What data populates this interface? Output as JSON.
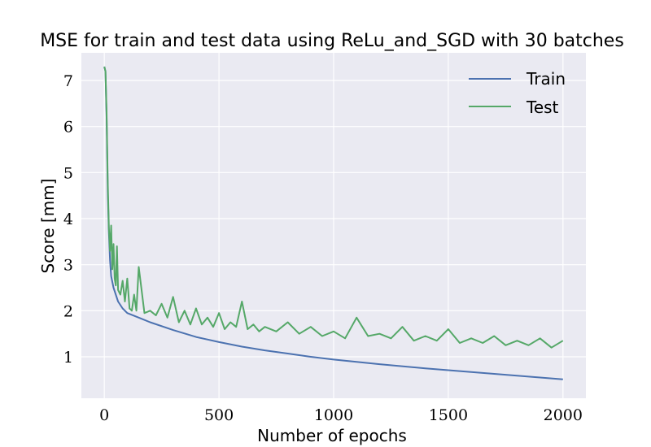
{
  "chart_data": {
    "type": "line",
    "title": "MSE for train and test data using ReLu_and_SGD with 30 batches",
    "xlabel": "Number of epochs",
    "ylabel": "Score [mm]",
    "xlim": [
      -100,
      2100
    ],
    "ylim": [
      0.1,
      7.6
    ],
    "xticks": [
      0,
      500,
      1000,
      1500,
      2000
    ],
    "yticks": [
      1,
      2,
      3,
      4,
      5,
      6,
      7
    ],
    "grid": true,
    "legend_position": "top-right",
    "colors": {
      "background": "#eaeaf2",
      "grid": "#ffffff",
      "train": "#4c72b0",
      "test": "#55a868"
    },
    "series": [
      {
        "name": "Train",
        "x": [
          0,
          5,
          10,
          15,
          20,
          25,
          30,
          40,
          50,
          60,
          80,
          100,
          150,
          200,
          300,
          400,
          500,
          600,
          700,
          800,
          900,
          1000,
          1200,
          1400,
          1600,
          1800,
          2000
        ],
        "values": [
          7.3,
          7.2,
          6.2,
          4.6,
          3.7,
          3.1,
          2.75,
          2.5,
          2.35,
          2.2,
          2.05,
          1.95,
          1.85,
          1.75,
          1.58,
          1.43,
          1.32,
          1.22,
          1.14,
          1.07,
          1.0,
          0.94,
          0.84,
          0.75,
          0.67,
          0.59,
          0.51
        ]
      },
      {
        "name": "Test",
        "x": [
          0,
          5,
          10,
          15,
          20,
          25,
          30,
          35,
          40,
          45,
          50,
          55,
          60,
          70,
          80,
          90,
          100,
          110,
          120,
          130,
          140,
          150,
          175,
          200,
          225,
          250,
          275,
          300,
          325,
          350,
          375,
          400,
          425,
          450,
          475,
          500,
          525,
          550,
          575,
          600,
          625,
          650,
          675,
          700,
          750,
          800,
          850,
          900,
          950,
          1000,
          1050,
          1100,
          1150,
          1200,
          1250,
          1300,
          1350,
          1400,
          1450,
          1500,
          1550,
          1600,
          1650,
          1700,
          1750,
          1800,
          1850,
          1900,
          1950,
          2000
        ],
        "values": [
          7.3,
          7.2,
          6.3,
          4.8,
          3.8,
          3.3,
          3.85,
          2.9,
          3.45,
          2.7,
          2.55,
          3.4,
          2.45,
          2.35,
          2.65,
          2.2,
          2.7,
          2.05,
          2.0,
          2.35,
          2.0,
          2.95,
          1.95,
          2.0,
          1.9,
          2.15,
          1.85,
          2.3,
          1.75,
          2.0,
          1.7,
          2.05,
          1.7,
          1.85,
          1.65,
          1.95,
          1.6,
          1.75,
          1.65,
          2.2,
          1.6,
          1.7,
          1.55,
          1.65,
          1.55,
          1.75,
          1.5,
          1.65,
          1.45,
          1.55,
          1.4,
          1.85,
          1.45,
          1.5,
          1.4,
          1.65,
          1.35,
          1.45,
          1.35,
          1.6,
          1.3,
          1.4,
          1.3,
          1.45,
          1.25,
          1.35,
          1.25,
          1.4,
          1.2,
          1.35
        ]
      }
    ]
  }
}
